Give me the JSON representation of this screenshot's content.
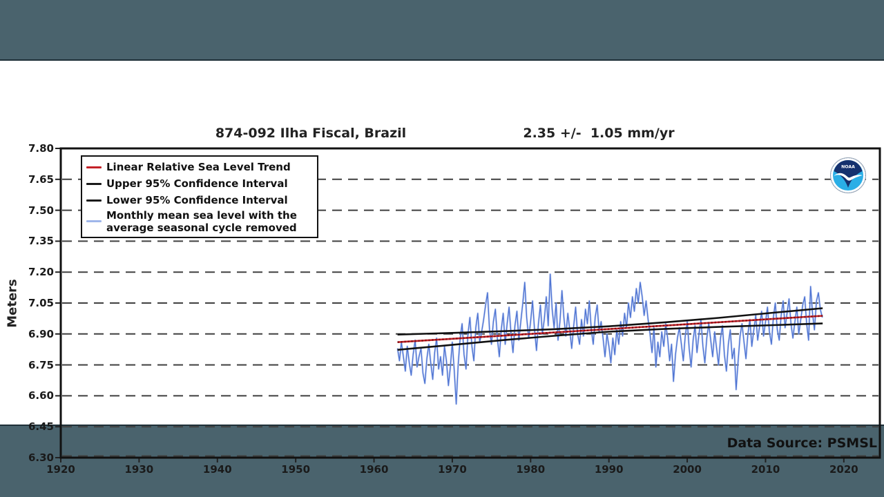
{
  "page": {
    "background_color": "#4a636d",
    "panel_color": "#ffffff"
  },
  "header": {
    "station_title": "874-092 Ilha Fiscal, Brazil",
    "trend_value": "2.35 +/-  1.05 mm/yr"
  },
  "footer": {
    "data_source": "Data Source: PSMSL"
  },
  "axes": {
    "y_label": "Meters",
    "y_ticks": [
      6.3,
      6.45,
      6.6,
      6.75,
      6.9,
      7.05,
      7.2,
      7.35,
      7.5,
      7.65,
      7.8
    ],
    "x_ticks": [
      1920,
      1930,
      1940,
      1950,
      1960,
      1970,
      1980,
      1990,
      2000,
      2010,
      2020
    ]
  },
  "legend": {
    "items": [
      {
        "label": "Linear Relative Sea Level Trend",
        "color": "#c42127"
      },
      {
        "label": "Upper 95% Confidence Interval",
        "color": "#1a1a1a"
      },
      {
        "label": "Lower 95% Confidence Interval",
        "color": "#1a1a1a"
      },
      {
        "label_line1": "Monthly mean sea level with the",
        "label_line2": "average seasonal cycle removed",
        "color": "#9fb6ea"
      }
    ]
  },
  "logo": {
    "name": "NOAA logo",
    "text": "NOAA"
  },
  "chart_data": {
    "type": "line",
    "title": "874-092 Ilha Fiscal, Brazil",
    "subtitle": "2.35 +/- 1.05 mm/yr",
    "xlabel": "",
    "ylabel": "Meters",
    "xlim": [
      1920,
      2024.6
    ],
    "ylim": [
      6.3,
      7.8
    ],
    "grid": "horizontal-dashed",
    "legend_position": "upper-left",
    "series": [
      {
        "name": "Linear Relative Sea Level Trend",
        "color": "#c42127",
        "x": [
          1963.0,
          2017.3
        ],
        "y": [
          6.86,
          6.988
        ]
      },
      {
        "name": "Upper 95% Confidence Interval",
        "color": "#121212",
        "x": [
          1963.0,
          1970,
          1977,
          1983,
          1990,
          1997,
          2004,
          2011,
          2017.3
        ],
        "y": [
          6.897,
          6.905,
          6.914,
          6.923,
          6.937,
          6.956,
          6.978,
          7.003,
          7.025
        ]
      },
      {
        "name": "Lower 95% Confidence Interval",
        "color": "#121212",
        "x": [
          1963.0,
          1970,
          1977,
          1983,
          1990,
          1997,
          2004,
          2011,
          2017.3
        ],
        "y": [
          6.823,
          6.847,
          6.872,
          6.891,
          6.911,
          6.924,
          6.934,
          6.943,
          6.951
        ]
      },
      {
        "name": "Monthly mean sea level with the average seasonal cycle removed",
        "color": "#4f74d2",
        "halo_color": "#b4c6f2",
        "x_start": 1963.0,
        "x_step": 0.25,
        "y": [
          6.83,
          6.77,
          6.86,
          6.79,
          6.72,
          6.84,
          6.76,
          6.7,
          6.8,
          6.87,
          6.74,
          6.79,
          6.83,
          6.71,
          6.66,
          6.78,
          6.85,
          6.76,
          6.68,
          6.81,
          6.88,
          6.73,
          6.79,
          6.7,
          6.84,
          6.77,
          6.65,
          6.74,
          6.86,
          6.72,
          6.56,
          6.75,
          6.88,
          6.95,
          6.8,
          6.73,
          6.9,
          6.98,
          6.84,
          6.77,
          6.93,
          7.0,
          6.86,
          6.91,
          6.97,
          7.04,
          7.1,
          6.92,
          6.85,
          6.96,
          7.02,
          6.88,
          6.79,
          6.92,
          7.0,
          6.85,
          6.95,
          7.03,
          6.9,
          6.81,
          6.94,
          7.01,
          6.87,
          6.96,
          7.05,
          7.15,
          6.98,
          6.88,
          6.96,
          7.06,
          6.92,
          6.82,
          6.95,
          7.04,
          6.9,
          6.97,
          7.08,
          6.94,
          7.19,
          7.02,
          6.93,
          7.05,
          6.87,
          6.96,
          7.11,
          6.98,
          6.89,
          7.0,
          6.92,
          6.83,
          6.94,
          7.03,
          6.9,
          6.85,
          6.97,
          6.89,
          7.02,
          6.95,
          7.06,
          6.92,
          6.85,
          6.98,
          7.04,
          6.91,
          6.96,
          6.88,
          6.79,
          6.9,
          6.84,
          6.76,
          6.88,
          6.8,
          6.92,
          6.85,
          6.96,
          6.89,
          7.0,
          6.93,
          7.05,
          6.98,
          7.08,
          7.01,
          7.12,
          7.05,
          7.15,
          7.08,
          6.99,
          7.06,
          6.97,
          6.9,
          6.81,
          6.93,
          6.74,
          6.86,
          6.79,
          6.91,
          6.84,
          6.95,
          6.88,
          6.77,
          6.85,
          6.67,
          6.8,
          6.88,
          6.93,
          6.85,
          6.77,
          6.89,
          6.96,
          6.83,
          6.74,
          6.87,
          6.94,
          6.81,
          6.9,
          6.97,
          6.84,
          6.76,
          6.88,
          6.95,
          6.87,
          6.79,
          6.91,
          6.83,
          6.75,
          6.88,
          6.94,
          6.8,
          6.72,
          6.85,
          6.92,
          6.78,
          6.83,
          6.63,
          6.77,
          6.89,
          6.95,
          6.86,
          6.78,
          6.9,
          6.97,
          6.84,
          6.92,
          6.99,
          6.87,
          6.94,
          7.01,
          6.89,
          6.96,
          7.03,
          6.91,
          6.85,
          6.98,
          7.05,
          6.92,
          6.87,
          6.99,
          7.06,
          6.93,
          7.0,
          7.07,
          6.95,
          6.88,
          6.96,
          7.03,
          6.9,
          6.97,
          7.04,
          7.08,
          6.95,
          6.87,
          7.13,
          7.0,
          6.92,
          7.06,
          7.1,
          7.02,
          6.98
        ]
      }
    ]
  }
}
